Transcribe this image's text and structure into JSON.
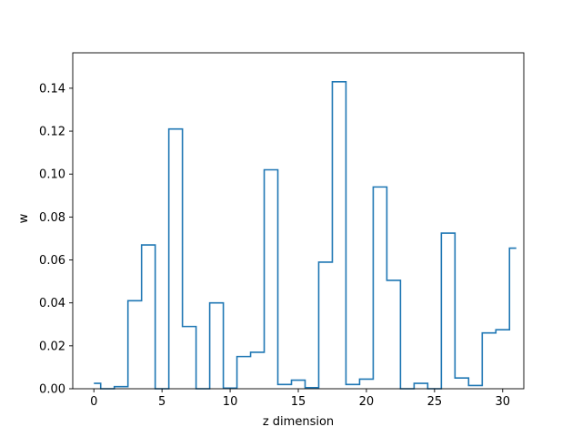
{
  "chart_data": {
    "type": "line",
    "drawstyle": "steps-mid",
    "xlabel": "z dimension",
    "ylabel": "w",
    "xlim": [
      -1.55,
      31.55
    ],
    "ylim": [
      0,
      0.1565
    ],
    "xticks": [
      0,
      5,
      10,
      15,
      20,
      25,
      30
    ],
    "yticks": [
      0.0,
      0.02,
      0.04,
      0.06,
      0.08,
      0.1,
      0.12,
      0.14
    ],
    "ytick_labels": [
      "0.00",
      "0.02",
      "0.04",
      "0.06",
      "0.08",
      "0.10",
      "0.12",
      "0.14"
    ],
    "grid": false,
    "line_color": "#1f77b4",
    "series": [
      {
        "x": [
          0,
          1,
          2,
          3,
          4,
          5,
          6,
          7,
          8,
          9,
          10,
          11,
          12,
          13,
          14,
          15,
          16,
          17,
          18,
          19,
          20,
          21,
          22,
          23,
          24,
          25,
          26,
          27,
          28,
          29,
          30,
          31
        ],
        "values": [
          0.0025,
          0.0,
          0.001,
          0.041,
          0.067,
          0.0,
          0.121,
          0.029,
          0.0,
          0.04,
          0.0003,
          0.015,
          0.017,
          0.102,
          0.002,
          0.004,
          0.0005,
          0.059,
          0.143,
          0.002,
          0.0045,
          0.094,
          0.0505,
          0.0,
          0.0025,
          0.0,
          0.0725,
          0.005,
          0.0015,
          0.026,
          0.0275,
          0.0655
        ]
      }
    ]
  }
}
